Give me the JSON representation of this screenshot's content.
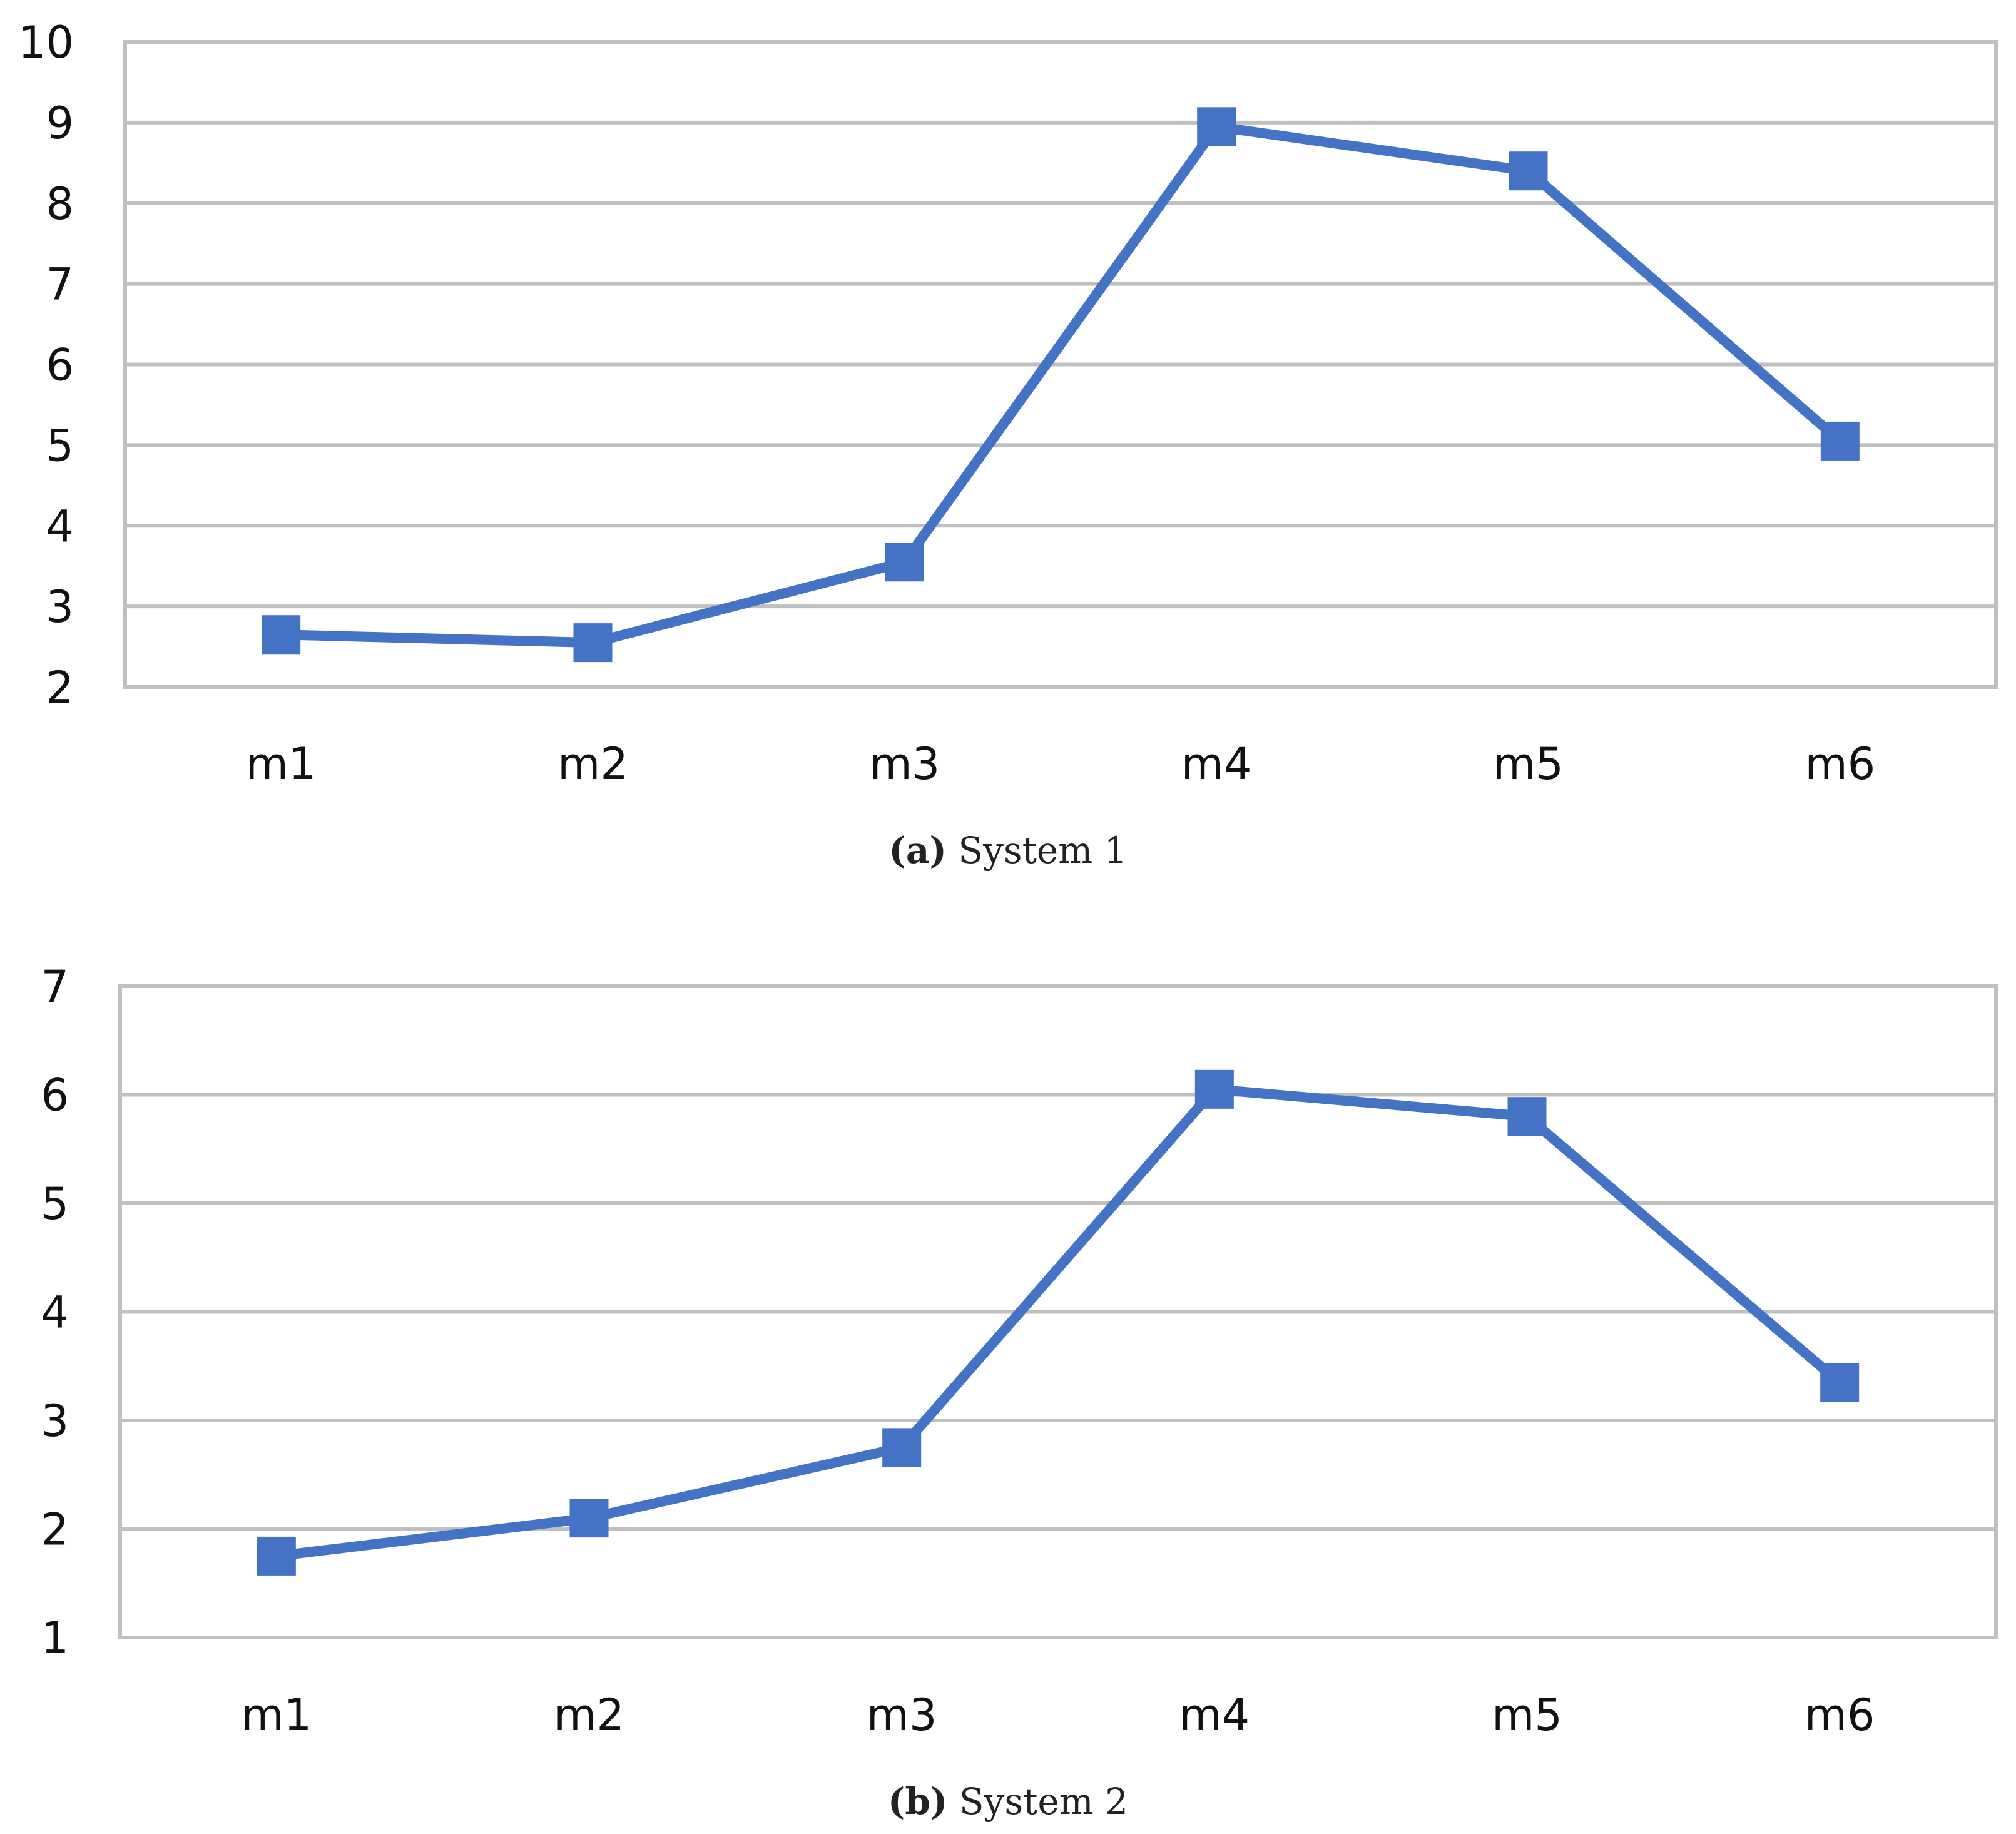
{
  "chart_data": [
    {
      "type": "line",
      "panel_tag": "a",
      "caption": "System 1",
      "categories": [
        "m1",
        "m2",
        "m3",
        "m4",
        "m5",
        "m6"
      ],
      "series": [
        {
          "values": [
            2.65,
            2.55,
            3.55,
            8.95,
            8.4,
            5.05
          ]
        }
      ],
      "ylim": [
        2,
        10
      ],
      "yticks": [
        2,
        3,
        4,
        5,
        6,
        7,
        8,
        9,
        10
      ],
      "grid": true,
      "line_color": "#4472C4",
      "grid_color": "#BFBFBF"
    },
    {
      "type": "line",
      "panel_tag": "b",
      "caption": "System 2",
      "categories": [
        "m1",
        "m2",
        "m3",
        "m4",
        "m5",
        "m6"
      ],
      "series": [
        {
          "values": [
            1.75,
            2.1,
            2.75,
            6.05,
            5.8,
            3.35
          ]
        }
      ],
      "ylim": [
        1,
        7
      ],
      "yticks": [
        1,
        2,
        3,
        4,
        5,
        6,
        7
      ],
      "grid": true,
      "line_color": "#4472C4",
      "grid_color": "#BFBFBF"
    }
  ]
}
